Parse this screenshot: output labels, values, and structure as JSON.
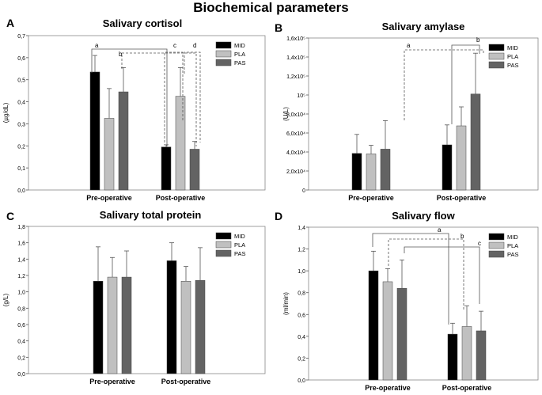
{
  "figure": {
    "title": "Biochemical parameters"
  },
  "chart_data": [
    {
      "panel": "A",
      "type": "bar",
      "title": "Salivary cortisol",
      "xlabel": "",
      "ylabel": "(µg/dL)",
      "categories": [
        "Pre-operative",
        "Post-operative"
      ],
      "ylim": [
        0,
        0.7
      ],
      "ytick_labels": [
        "0,0",
        "0,1",
        "0,2",
        "0,3",
        "0,4",
        "0,5",
        "0,6",
        "0,7"
      ],
      "legend": [
        "MID",
        "PLA",
        "PAS"
      ],
      "legend_position": "top-right",
      "series": [
        {
          "name": "MID",
          "values": [
            0.535,
            0.195
          ],
          "errors": [
            0.075,
            0.01
          ]
        },
        {
          "name": "PLA",
          "values": [
            0.325,
            0.425
          ],
          "errors": [
            0.135,
            0.13
          ]
        },
        {
          "name": "PAS",
          "values": [
            0.445,
            0.185
          ],
          "errors": [
            0.11,
            0.035
          ]
        }
      ],
      "annotations": [
        "a",
        "b",
        "c",
        "d"
      ]
    },
    {
      "panel": "B",
      "type": "bar",
      "title": "Salivary amylase",
      "xlabel": "",
      "ylabel": "(U/L)",
      "categories": [
        "Pre-operative",
        "Post-operative"
      ],
      "ylim": [
        0,
        160000
      ],
      "ytick_labels": [
        "0",
        "2,0x10⁴",
        "4,0x10⁴",
        "6,0x10⁴",
        "8,0x10⁴",
        "10⁵",
        "1,2x10⁵",
        "1,4x10⁵",
        "1,6x10⁵"
      ],
      "legend": [
        "MID",
        "PLA",
        "PAS"
      ],
      "legend_position": "top-right",
      "series": [
        {
          "name": "MID",
          "values": [
            38500,
            47500
          ],
          "errors": [
            20000,
            21000
          ]
        },
        {
          "name": "PLA",
          "values": [
            38000,
            67500
          ],
          "errors": [
            9000,
            20000
          ]
        },
        {
          "name": "PAS",
          "values": [
            43000,
            101000
          ],
          "errors": [
            30000,
            43000
          ]
        }
      ],
      "annotations": [
        "a",
        "b"
      ]
    },
    {
      "panel": "C",
      "type": "bar",
      "title": "Salivary total protein",
      "xlabel": "",
      "ylabel": "(g/L)",
      "categories": [
        "Pre-operative",
        "Post-operative"
      ],
      "ylim": [
        0,
        1.8
      ],
      "ytick_labels": [
        "0,0",
        "0,2",
        "0,4",
        "0,6",
        "0,8",
        "1,0",
        "1,2",
        "1,4",
        "1,6",
        "1,8"
      ],
      "legend": [
        "MID",
        "PLA",
        "PAS"
      ],
      "legend_position": "top-right",
      "series": [
        {
          "name": "MID",
          "values": [
            1.13,
            1.38
          ],
          "errors": [
            0.42,
            0.22
          ]
        },
        {
          "name": "PLA",
          "values": [
            1.18,
            1.13
          ],
          "errors": [
            0.24,
            0.18
          ]
        },
        {
          "name": "PAS",
          "values": [
            1.18,
            1.14
          ],
          "errors": [
            0.32,
            0.4
          ]
        }
      ],
      "annotations": []
    },
    {
      "panel": "D",
      "type": "bar",
      "title": "Salivary flow",
      "xlabel": "",
      "ylabel": "(ml/min)",
      "categories": [
        "Pre-operative",
        "Post-operative"
      ],
      "ylim": [
        0,
        1.4
      ],
      "ytick_labels": [
        "0,0",
        "0,2",
        "0,4",
        "0,6",
        "0,8",
        "1,0",
        "1,2",
        "1,4"
      ],
      "legend": [
        "MID",
        "PLA",
        "PAS"
      ],
      "legend_position": "top-right",
      "series": [
        {
          "name": "MID",
          "values": [
            1.0,
            0.42
          ],
          "errors": [
            0.18,
            0.1
          ]
        },
        {
          "name": "PLA",
          "values": [
            0.9,
            0.49
          ],
          "errors": [
            0.12,
            0.19
          ]
        },
        {
          "name": "PAS",
          "values": [
            0.84,
            0.45
          ],
          "errors": [
            0.26,
            0.18
          ]
        }
      ],
      "annotations": [
        "a",
        "b",
        "c"
      ]
    }
  ],
  "colors": {
    "MID": "#000000",
    "PLA": "#c0c0c0",
    "PAS": "#636363"
  }
}
